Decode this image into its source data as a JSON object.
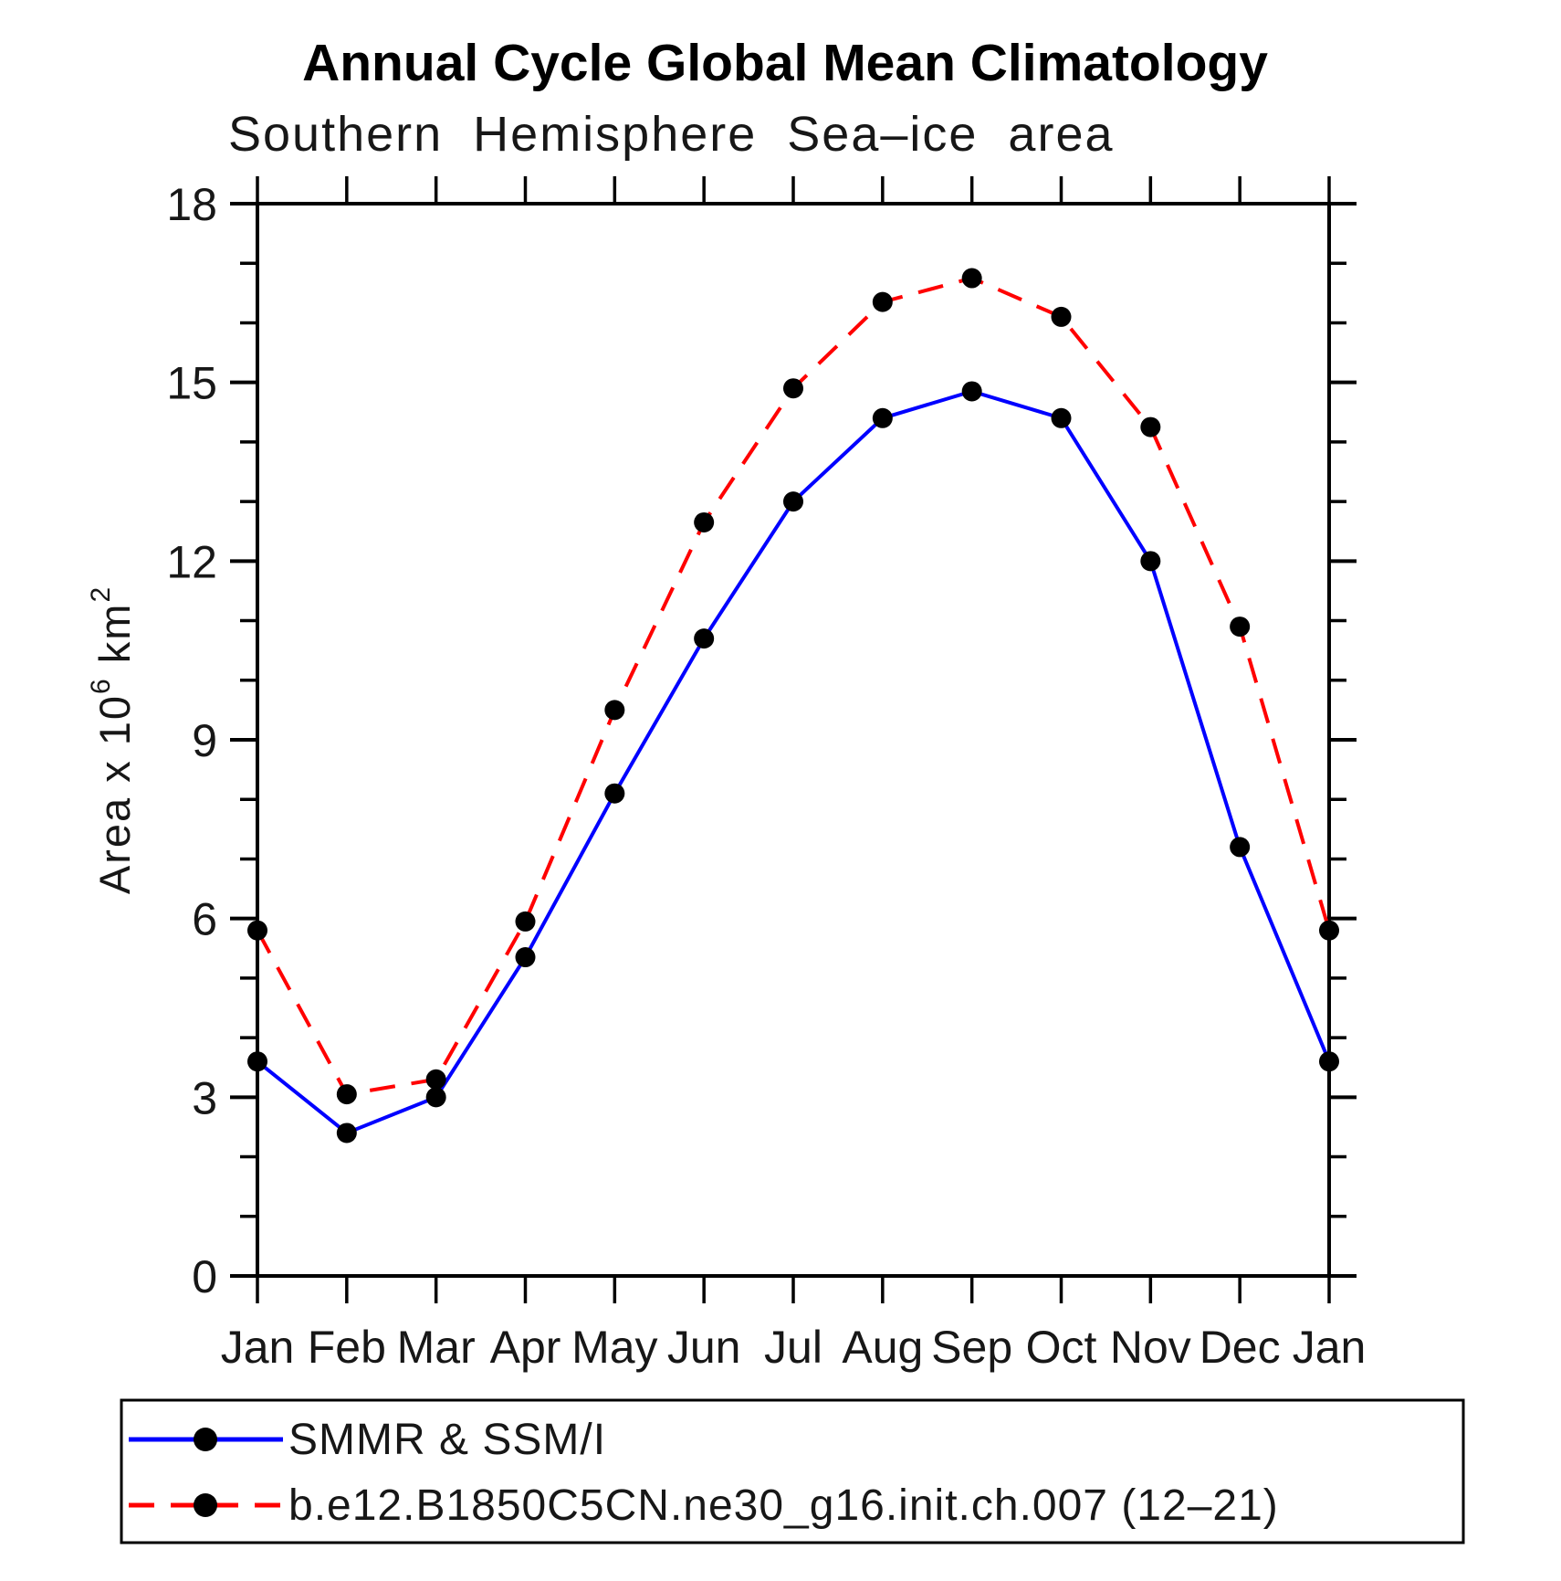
{
  "chart_data": {
    "type": "line",
    "title": "Annual Cycle Global Mean Climatology",
    "subtitle": "Southern Hemisphere Sea–ice area",
    "ylabel": "Area x 10⁶ km²",
    "ylabel_parts": {
      "base1": "Area x 10",
      "sup1": "6",
      "base2": " km",
      "sup2": "2"
    },
    "xlabel": "",
    "categories": [
      "Jan",
      "Feb",
      "Mar",
      "Apr",
      "May",
      "Jun",
      "Jul",
      "Aug",
      "Sep",
      "Oct",
      "Nov",
      "Dec",
      "Jan"
    ],
    "ylim": [
      0,
      18
    ],
    "ytick_major": [
      0,
      3,
      6,
      9,
      12,
      15,
      18
    ],
    "ytick_minor_step": 1,
    "grid": false,
    "legend_position": "bottom",
    "frame_color": "#000000",
    "series": [
      {
        "name": "SMMR & SSM/I",
        "color": "#0000ff",
        "line_style": "solid",
        "marker": "circle",
        "marker_color": "#000000",
        "values": [
          3.6,
          2.4,
          3.0,
          5.35,
          8.1,
          10.7,
          13.0,
          14.4,
          14.85,
          14.4,
          12.0,
          7.2,
          3.6
        ]
      },
      {
        "name": "b.e12.B1850C5CN.ne30_g16.init.ch.007 (12–21)",
        "color": "#ff0000",
        "line_style": "dashed",
        "marker": "circle",
        "marker_color": "#000000",
        "values": [
          5.8,
          3.05,
          3.3,
          5.95,
          9.5,
          12.65,
          14.9,
          16.35,
          16.75,
          16.1,
          14.25,
          10.9,
          5.8
        ]
      }
    ]
  }
}
